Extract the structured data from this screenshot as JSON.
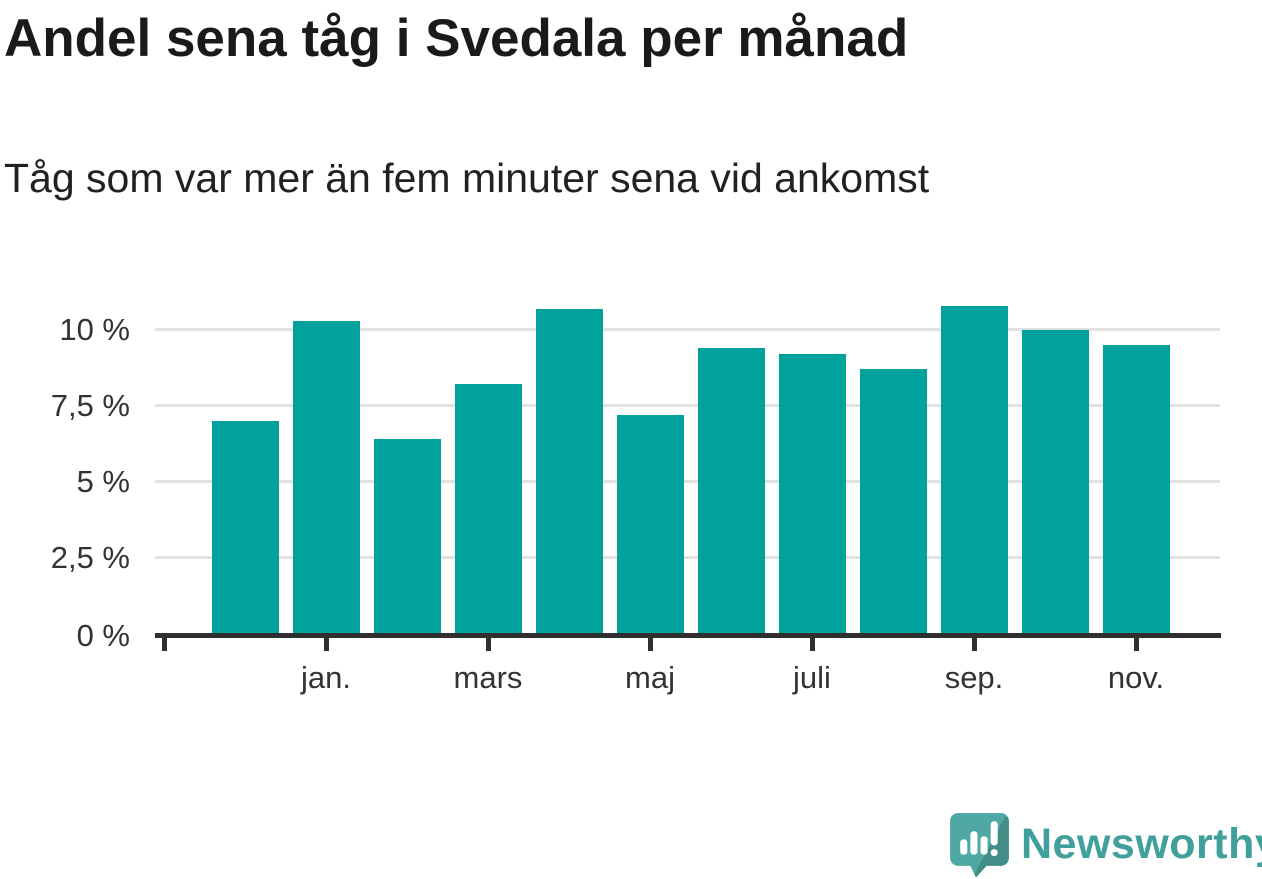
{
  "header": {
    "title": "Andel sena tåg i Svedala per månad",
    "subtitle": "Tåg som var mer än fem minuter sena vid ankomst"
  },
  "chart_data": {
    "type": "bar",
    "title": "Andel sena tåg i Svedala per månad",
    "subtitle": "Tåg som var mer än fem minuter sena vid ankomst",
    "unit": "%",
    "values": [
      7.0,
      10.3,
      6.4,
      8.2,
      10.7,
      7.2,
      9.4,
      9.2,
      8.7,
      10.8,
      10.0,
      9.5
    ],
    "y_ticks": [
      0,
      2.5,
      5,
      7.5,
      10
    ],
    "y_tick_labels": [
      "0 %",
      "2,5 %",
      "5 %",
      "7,5 %",
      "10 %"
    ],
    "x_ticks": [
      {
        "label": "",
        "bar_index": -1
      },
      {
        "label": "jan.",
        "bar_index": 1
      },
      {
        "label": "mars",
        "bar_index": 3
      },
      {
        "label": "maj",
        "bar_index": 5
      },
      {
        "label": "juli",
        "bar_index": 7
      },
      {
        "label": "sep.",
        "bar_index": 9
      },
      {
        "label": "nov.",
        "bar_index": 11
      }
    ],
    "ylim": [
      0,
      11.15
    ],
    "grid": true,
    "legend": "none",
    "bar_color": "#00a29b",
    "grid_color": "#e1e1e1",
    "axis_color": "#2f2f2f",
    "label_color": "#333333"
  },
  "footer": {
    "brand": "Newsworthy",
    "brand_color": "#3fa09c",
    "icon": "newsworthy-logo-icon",
    "icon_color": "#4fa8a3",
    "icon_shade_color": "#3e8f8b"
  }
}
